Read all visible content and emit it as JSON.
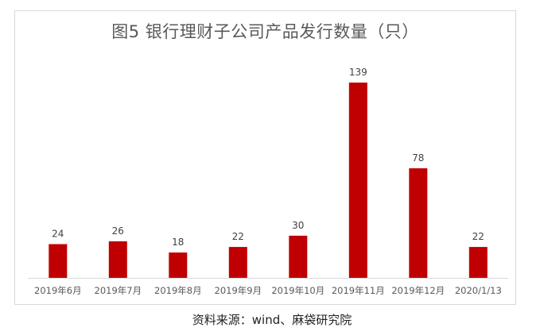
{
  "chart_data": {
    "type": "bar",
    "title": "图5 银行理财子公司产品发行数量（只）",
    "categories": [
      "2019年6月",
      "2019年7月",
      "2019年8月",
      "2019年9月",
      "2019年10月",
      "2019年11月",
      "2019年12月",
      "2020/1/13"
    ],
    "values": [
      24,
      26,
      18,
      22,
      30,
      139,
      78,
      22
    ],
    "xlabel": "",
    "ylabel": "",
    "ylim": [
      0,
      145
    ],
    "grid": false,
    "legend": "none",
    "bar_color": "#c00000"
  },
  "source": "资料来源：wind、麻袋研究院"
}
